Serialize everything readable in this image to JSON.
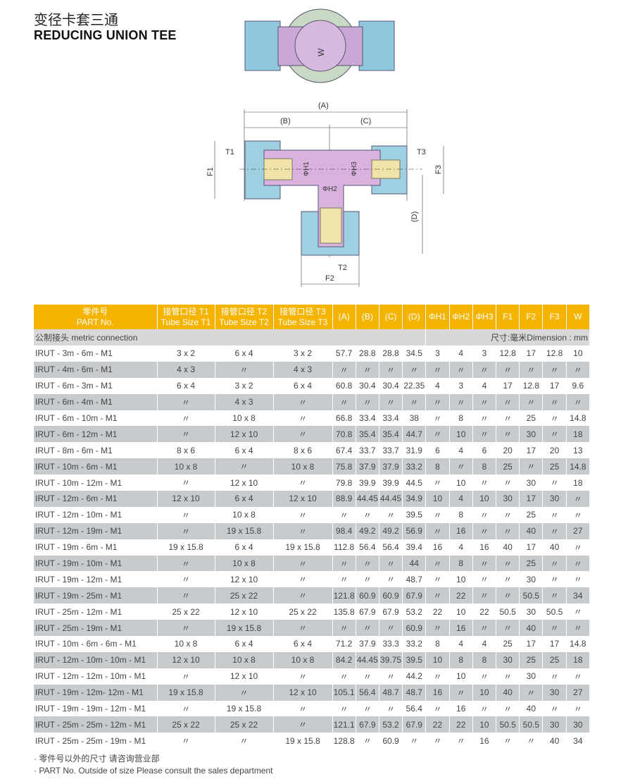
{
  "title_cn": "变径卡套三通",
  "title_en": "REDUCING UNION TEE",
  "drawing": {
    "w": "W",
    "a": "(A)",
    "b": "(B)",
    "c": "(C)",
    "d": "(D)",
    "t1": "T1",
    "t2": "T2",
    "t3": "T3",
    "f1": "F1",
    "f2": "F2",
    "f3": "F3",
    "h1": "ΦH1",
    "h2": "ΦH2",
    "h3": "ΦH3"
  },
  "table": {
    "headers": [
      {
        "cn": "零件号",
        "en": "PART No."
      },
      {
        "cn": "接管口径 T1",
        "en": "Tube Size T1"
      },
      {
        "cn": "接管口径 T2",
        "en": "Tube Size T2"
      },
      {
        "cn": "接管口径 T3",
        "en": "Tube Size T3"
      },
      {
        "en": "(A)"
      },
      {
        "en": "(B)"
      },
      {
        "en": "(C)"
      },
      {
        "en": "(D)"
      },
      {
        "en": "ΦH1"
      },
      {
        "en": "ΦH2"
      },
      {
        "en": "ΦH3"
      },
      {
        "en": "F1"
      },
      {
        "en": "F2"
      },
      {
        "en": "F3"
      },
      {
        "en": "W"
      }
    ],
    "section_label": "公制接头 metric connection",
    "unit_label": "尺寸:毫米Dimension : mm",
    "rows": [
      [
        "IRUT - 3m - 6m - M1",
        "3 x 2",
        "6 x 4",
        "3 x 2",
        "57.7",
        "28.8",
        "28.8",
        "34.5",
        "3",
        "4",
        "3",
        "12.8",
        "17",
        "12.8",
        "10"
      ],
      [
        "IRUT - 4m - 6m - M1",
        "4 x 3",
        "〃",
        "4 x 3",
        "〃",
        "〃",
        "〃",
        "〃",
        "〃",
        "〃",
        "〃",
        "〃",
        "〃",
        "〃",
        "〃"
      ],
      [
        "IRUT - 6m - 3m - M1",
        "6 x 4",
        "3 x 2",
        "6 x 4",
        "60.8",
        "30.4",
        "30.4",
        "22.35",
        "4",
        "3",
        "4",
        "17",
        "12.8",
        "17",
        "9.6"
      ],
      [
        "IRUT - 6m - 4m - M1",
        "〃",
        "4 x 3",
        "〃",
        "〃",
        "〃",
        "〃",
        "〃",
        "〃",
        "〃",
        "〃",
        "〃",
        "〃",
        "〃",
        "〃"
      ],
      [
        "IRUT - 6m - 10m - M1",
        "〃",
        "10 x 8",
        "〃",
        "66.8",
        "33.4",
        "33.4",
        "38",
        "〃",
        "8",
        "〃",
        "〃",
        "25",
        "〃",
        "14.8"
      ],
      [
        "IRUT - 6m - 12m - M1",
        "〃",
        "12 x 10",
        "〃",
        "70.8",
        "35.4",
        "35.4",
        "44.7",
        "〃",
        "10",
        "〃",
        "〃",
        "30",
        "〃",
        "18"
      ],
      [
        "IRUT - 8m - 6m - M1",
        "8 x 6",
        "6 x 4",
        "8 x 6",
        "67.4",
        "33.7",
        "33.7",
        "31.9",
        "6",
        "4",
        "6",
        "20",
        "17",
        "20",
        "13"
      ],
      [
        "IRUT - 10m - 6m - M1",
        "10 x 8",
        "〃",
        "10 x 8",
        "75.8",
        "37.9",
        "37.9",
        "33.2",
        "8",
        "〃",
        "8",
        "25",
        "〃",
        "25",
        "14.8"
      ],
      [
        "IRUT - 10m - 12m - M1",
        "〃",
        "12 x 10",
        "〃",
        "79.8",
        "39.9",
        "39.9",
        "44.5",
        "〃",
        "10",
        "〃",
        "〃",
        "30",
        "〃",
        "18"
      ],
      [
        "IRUT - 12m - 6m - M1",
        "12 x 10",
        "6 x 4",
        "12 x 10",
        "88.9",
        "44.45",
        "44.45",
        "34.9",
        "10",
        "4",
        "10",
        "30",
        "17",
        "30",
        "〃"
      ],
      [
        "IRUT - 12m - 10m - M1",
        "〃",
        "10 x 8",
        "〃",
        "〃",
        "〃",
        "〃",
        "39.5",
        "〃",
        "8",
        "〃",
        "〃",
        "25",
        "〃",
        "〃"
      ],
      [
        "IRUT - 12m - 19m - M1",
        "〃",
        "19 x 15.8",
        "〃",
        "98.4",
        "49.2",
        "49.2",
        "56.9",
        "〃",
        "16",
        "〃",
        "〃",
        "40",
        "〃",
        "27"
      ],
      [
        "IRUT - 19m - 6m - M1",
        "19 x 15.8",
        "6 x 4",
        "19 x 15.8",
        "112.8",
        "56.4",
        "56.4",
        "39.4",
        "16",
        "4",
        "16",
        "40",
        "17",
        "40",
        "〃"
      ],
      [
        "IRUT - 19m - 10m - M1",
        "〃",
        "10 x 8",
        "〃",
        "〃",
        "〃",
        "〃",
        "44",
        "〃",
        "8",
        "〃",
        "〃",
        "25",
        "〃",
        "〃"
      ],
      [
        "IRUT - 19m - 12m - M1",
        "〃",
        "12 x 10",
        "〃",
        "〃",
        "〃",
        "〃",
        "48.7",
        "〃",
        "10",
        "〃",
        "〃",
        "30",
        "〃",
        "〃"
      ],
      [
        "IRUT - 19m - 25m - M1",
        "〃",
        "25 x 22",
        "〃",
        "121.8",
        "60.9",
        "60.9",
        "67.9",
        "〃",
        "22",
        "〃",
        "〃",
        "50.5",
        "〃",
        "34"
      ],
      [
        "IRUT - 25m - 12m - M1",
        "25 x 22",
        "12 x 10",
        "25 x 22",
        "135.8",
        "67.9",
        "67.9",
        "53.2",
        "22",
        "10",
        "22",
        "50.5",
        "30",
        "50.5",
        "〃"
      ],
      [
        "IRUT - 25m - 19m - M1",
        "〃",
        "19 x 15.8",
        "〃",
        "〃",
        "〃",
        "〃",
        "60.9",
        "〃",
        "16",
        "〃",
        "〃",
        "40",
        "〃",
        "〃"
      ],
      [
        "IRUT - 10m - 6m - 6m - M1",
        "10 x 8",
        "6 x 4",
        "6 x 4",
        "71.2",
        "37.9",
        "33.3",
        "33.2",
        "8",
        "4",
        "4",
        "25",
        "17",
        "17",
        "14.8"
      ],
      [
        "IRUT - 12m - 10m - 10m - M1",
        "12 x 10",
        "10 x 8",
        "10 x 8",
        "84.2",
        "44.45",
        "39.75",
        "39.5",
        "10",
        "8",
        "8",
        "30",
        "25",
        "25",
        "18"
      ],
      [
        "IRUT - 12m - 12m - 10m - M1",
        "〃",
        "12 x 10",
        "〃",
        "〃",
        "〃",
        "〃",
        "44.2",
        "〃",
        "10",
        "〃",
        "〃",
        "30",
        "〃",
        "〃"
      ],
      [
        "IRUT - 19m - 12m- 12m - M1",
        "19 x 15.8",
        "〃",
        "12 x 10",
        "105.1",
        "56.4",
        "48.7",
        "48.7",
        "16",
        "〃",
        "10",
        "40",
        "〃",
        "30",
        "27"
      ],
      [
        "IRUT - 19m - 19m - 12m - M1",
        "〃",
        "19 x 15.8",
        "〃",
        "〃",
        "〃",
        "〃",
        "56.4",
        "〃",
        "16",
        "〃",
        "〃",
        "40",
        "〃",
        "〃"
      ],
      [
        "IRUT - 25m - 25m - 12m - M1",
        "25 x 22",
        "25 x 22",
        "〃",
        "121.1",
        "67.9",
        "53.2",
        "67.9",
        "22",
        "22",
        "10",
        "50.5",
        "50.5",
        "30",
        "30"
      ],
      [
        "IRUT - 25m - 25m - 19m - M1",
        "〃",
        "〃",
        "19 x 15.8",
        "128.8",
        "〃",
        "60.9",
        "〃",
        "〃",
        "〃",
        "16",
        "〃",
        "〃",
        "40",
        "34"
      ]
    ]
  },
  "notes": [
    "· 零件号以外的尺寸 请咨询营业部",
    "· PART No. Outside of size Please consult the sales department"
  ]
}
